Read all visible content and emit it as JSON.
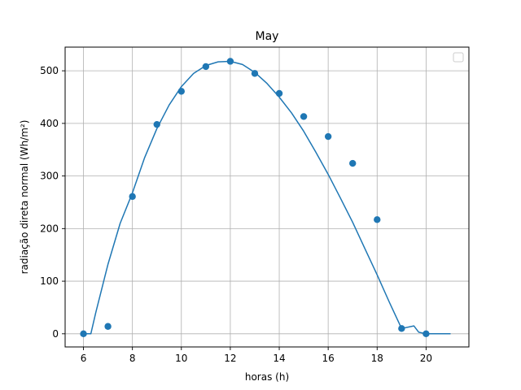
{
  "chart_data": {
    "type": "scatter",
    "title": "May",
    "xlabel": "horas (h)",
    "ylabel": "radiação direta normal (Wh/m²)",
    "xlim": [
      5.25,
      21.75
    ],
    "ylim": [
      -25,
      545
    ],
    "xticks": [
      6,
      8,
      10,
      12,
      14,
      16,
      18,
      20
    ],
    "yticks": [
      0,
      100,
      200,
      300,
      400,
      500
    ],
    "xtick_labels": [
      "6",
      "8",
      "10",
      "12",
      "14",
      "16",
      "18",
      "20"
    ],
    "ytick_labels": [
      "0",
      "100",
      "200",
      "300",
      "400",
      "500"
    ],
    "grid": true,
    "legend": "top-right, empty",
    "colors": {
      "series": "#1f77b4",
      "grid": "#b0b0b0",
      "axes": "#000000"
    },
    "series": [
      {
        "kind": "scatter",
        "x": [
          6,
          7,
          8,
          9,
          10,
          11,
          12,
          13,
          14,
          15,
          16,
          17,
          18,
          19,
          20
        ],
        "y": [
          0,
          14,
          261,
          398,
          461,
          508,
          518,
          495,
          457,
          413,
          375,
          324,
          217,
          10,
          0
        ]
      },
      {
        "kind": "line",
        "x": [
          6.0,
          6.3,
          6.5,
          7.0,
          7.5,
          8.0,
          8.5,
          9.0,
          9.5,
          10.0,
          10.5,
          11.0,
          11.5,
          12.0,
          12.5,
          13.0,
          13.5,
          14.0,
          14.5,
          15.0,
          15.5,
          16.0,
          16.5,
          17.0,
          17.5,
          18.0,
          18.5,
          19.0,
          19.5,
          19.7,
          20.0,
          21.0
        ],
        "y": [
          0,
          0,
          40,
          132,
          210,
          268,
          335,
          390,
          435,
          470,
          495,
          510,
          517,
          518,
          512,
          497,
          476,
          450,
          420,
          385,
          345,
          303,
          258,
          212,
          162,
          112,
          60,
          10,
          15,
          3,
          0,
          0
        ]
      }
    ]
  }
}
